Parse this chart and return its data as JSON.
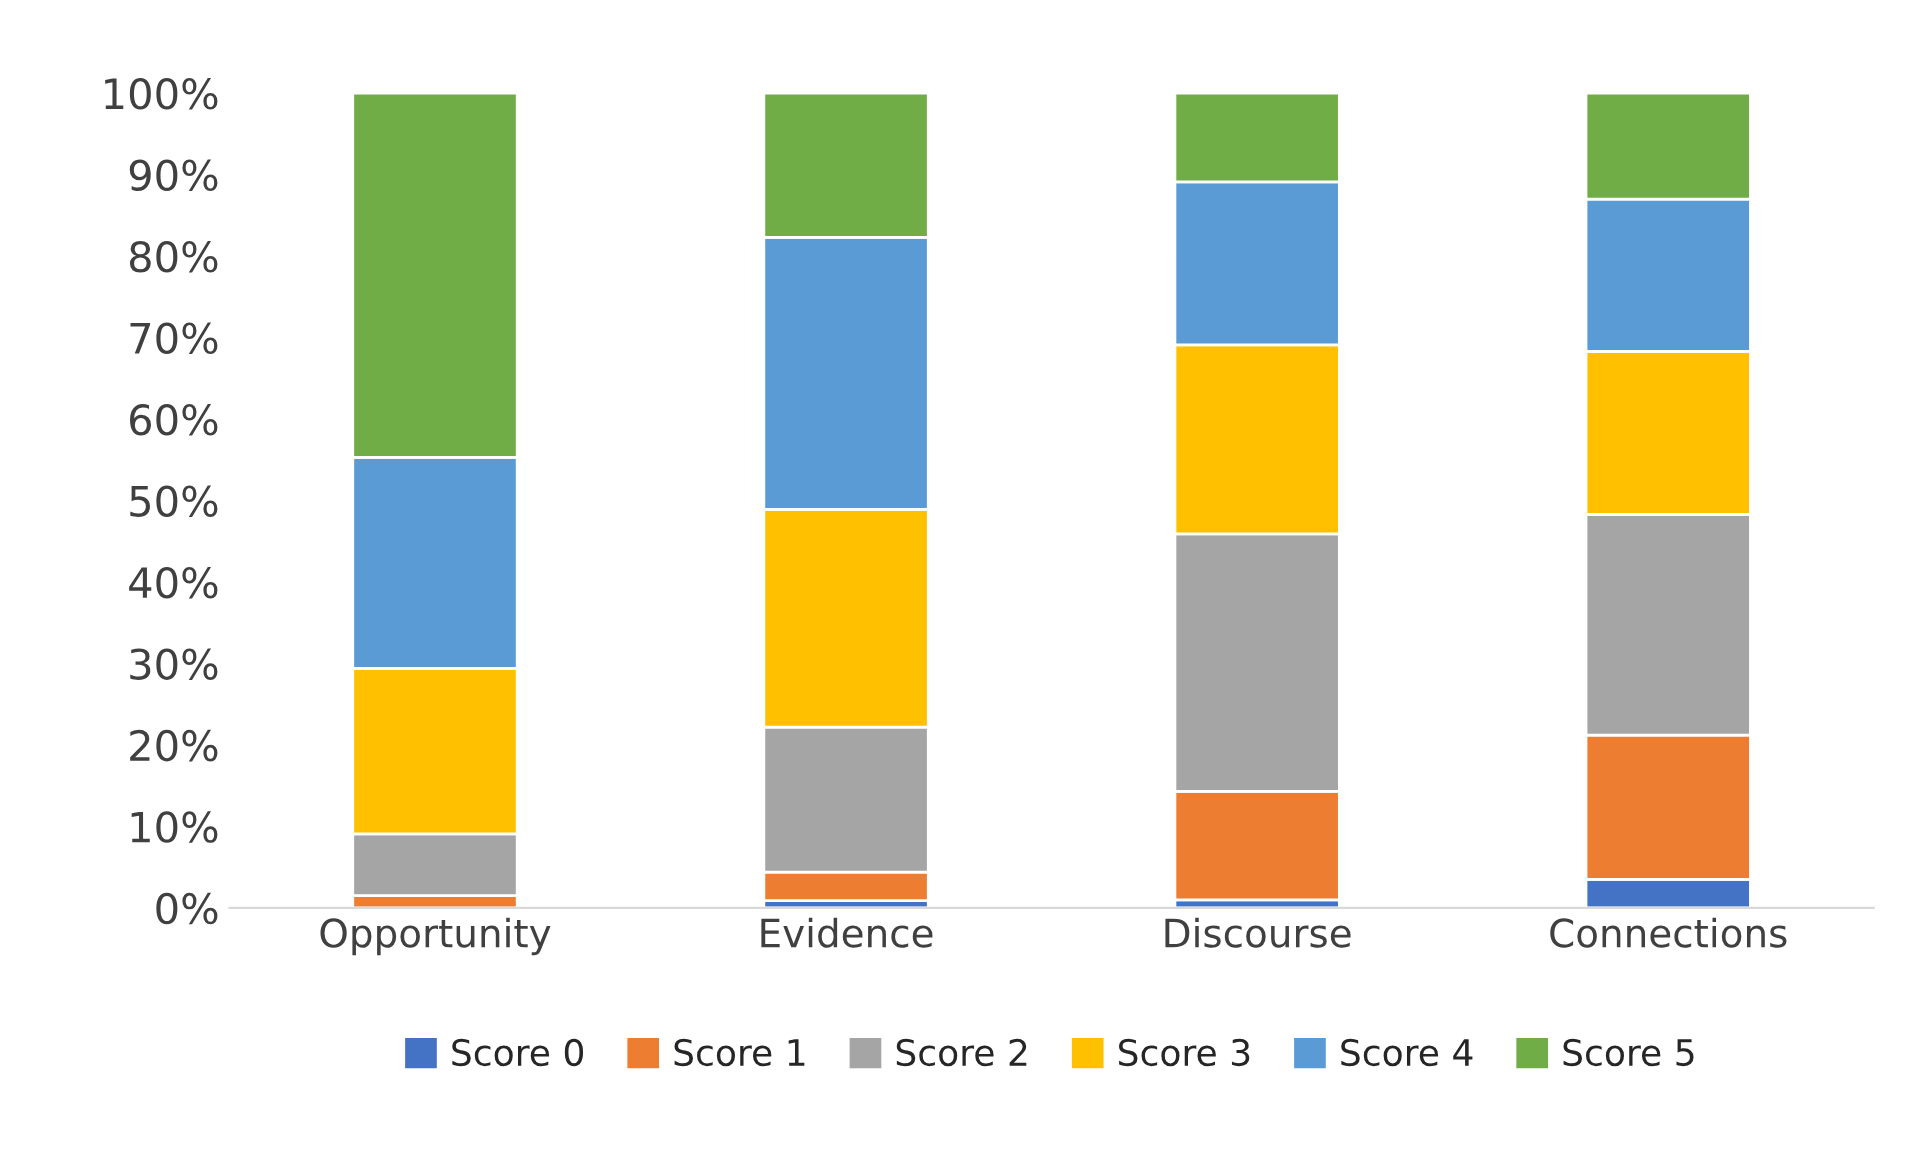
{
  "chart_data": {
    "type": "bar",
    "stacked": true,
    "categories": [
      "Opportunity",
      "Evidence",
      "Discourse",
      "Connections"
    ],
    "series": [
      {
        "name": "Score 0",
        "color": "#4472c4",
        "values": [
          0,
          0.9,
          1.0,
          3.5
        ]
      },
      {
        "name": "Score 1",
        "color": "#ed7d31",
        "values": [
          1.5,
          3.5,
          13.3,
          17.7
        ]
      },
      {
        "name": "Score 2",
        "color": "#a5a5a5",
        "values": [
          7.6,
          17.8,
          31.6,
          27.1
        ]
      },
      {
        "name": "Score 3",
        "color": "#ffc000",
        "values": [
          20.3,
          26.7,
          23.2,
          20.0
        ]
      },
      {
        "name": "Score 4",
        "color": "#5b9bd5",
        "values": [
          25.9,
          33.4,
          20.0,
          18.7
        ]
      },
      {
        "name": "Score 5",
        "color": "#70ad47",
        "values": [
          44.7,
          17.7,
          10.9,
          13.0
        ]
      }
    ],
    "ylim": [
      0,
      100
    ],
    "yticks": [
      {
        "value": 0,
        "label": "0%"
      },
      {
        "value": 10,
        "label": "10%"
      },
      {
        "value": 20,
        "label": "20%"
      },
      {
        "value": 30,
        "label": "30%"
      },
      {
        "value": 40,
        "label": "40%"
      },
      {
        "value": 50,
        "label": "50%"
      },
      {
        "value": 60,
        "label": "60%"
      },
      {
        "value": 70,
        "label": "70%"
      },
      {
        "value": 80,
        "label": "80%"
      },
      {
        "value": 90,
        "label": "90%"
      },
      {
        "value": 100,
        "label": "100%"
      }
    ],
    "grid": false,
    "legend": "bottom"
  }
}
